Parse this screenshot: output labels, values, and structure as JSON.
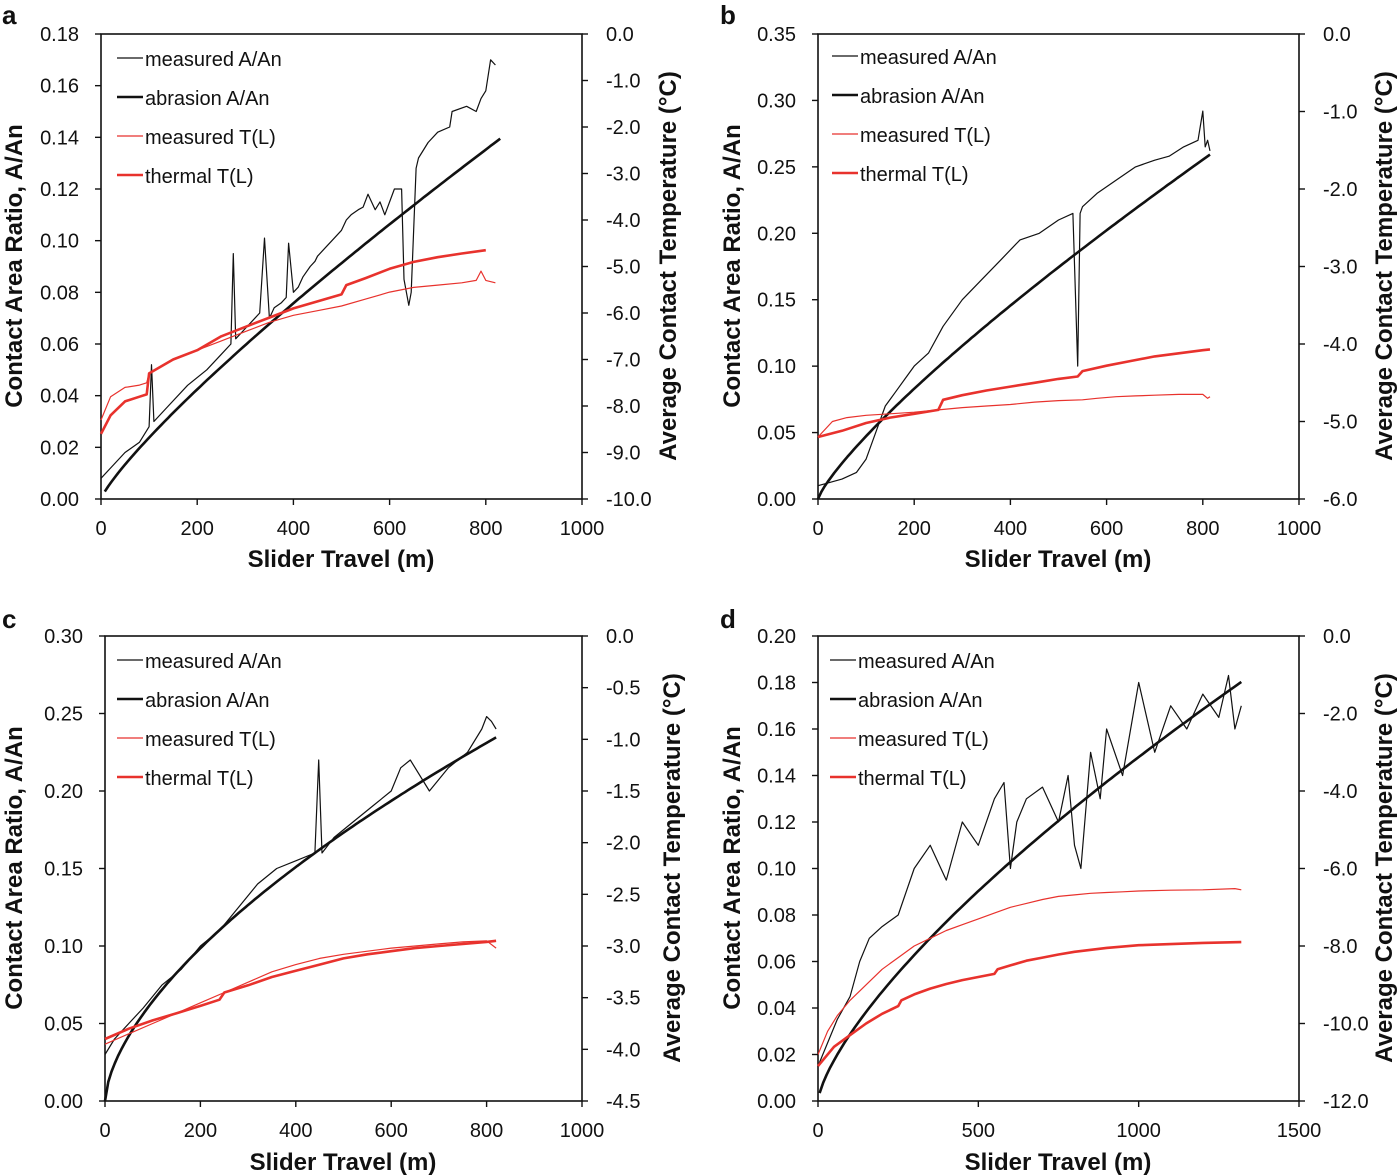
{
  "colors": {
    "black": "#111111",
    "red": "#e8322d"
  },
  "chart_data": [
    {
      "id": "a",
      "type": "line",
      "panel_label": "a",
      "xlabel": "Slider Travel (m)",
      "ylabel": "Contact Area Ratio, A/An",
      "y2label": "Average Contact Temperature (°C)",
      "xlim": [
        0,
        1000
      ],
      "ylim": [
        0,
        0.18
      ],
      "y2lim": [
        -10,
        0
      ],
      "xticks": [
        "0",
        "200",
        "400",
        "600",
        "800",
        "1000"
      ],
      "yticks": [
        "0.00",
        "0.02",
        "0.04",
        "0.06",
        "0.08",
        "0.10",
        "0.12",
        "0.14",
        "0.16",
        "0.18"
      ],
      "y2ticks": [
        "-10.0",
        "-9.0",
        "-8.0",
        "-7.0",
        "-6.0",
        "-5.0",
        "-4.0",
        "-3.0",
        "-2.0",
        "-1.0",
        "0.0"
      ],
      "legend": [
        "measured A/An",
        "abrasion A/An",
        "measured T(L)",
        "thermal T(L)"
      ],
      "series": [
        {
          "name": "measured A/An",
          "axis": "left",
          "color": "black",
          "style": "thin",
          "x": [
            0,
            20,
            50,
            80,
            100,
            105,
            110,
            140,
            180,
            220,
            250,
            270,
            275,
            280,
            300,
            320,
            330,
            340,
            350,
            360,
            375,
            385,
            390,
            400,
            410,
            420,
            435,
            445,
            450,
            470,
            480,
            500,
            510,
            520,
            535,
            545,
            555,
            570,
            580,
            590,
            610,
            625,
            630,
            640,
            645,
            655,
            660,
            680,
            700,
            725,
            730,
            760,
            780,
            790,
            800,
            810,
            820
          ],
          "y": [
            0.008,
            0.012,
            0.018,
            0.022,
            0.028,
            0.052,
            0.03,
            0.036,
            0.044,
            0.05,
            0.056,
            0.06,
            0.095,
            0.062,
            0.066,
            0.07,
            0.072,
            0.101,
            0.07,
            0.074,
            0.076,
            0.078,
            0.099,
            0.08,
            0.082,
            0.086,
            0.09,
            0.092,
            0.094,
            0.098,
            0.1,
            0.104,
            0.108,
            0.11,
            0.112,
            0.113,
            0.118,
            0.112,
            0.115,
            0.11,
            0.12,
            0.12,
            0.085,
            0.075,
            0.08,
            0.128,
            0.132,
            0.138,
            0.142,
            0.144,
            0.15,
            0.152,
            0.15,
            0.155,
            0.158,
            0.17,
            0.168
          ]
        },
        {
          "name": "abrasion A/An",
          "axis": "left",
          "color": "black",
          "style": "thick",
          "fn": "pow",
          "a": 0.000505,
          "p": 0.8363,
          "x0": 8,
          "x1": 830
        },
        {
          "name": "measured T(L)",
          "axis": "right",
          "color": "red",
          "style": "thin",
          "x": [
            0,
            20,
            50,
            80,
            95,
            100,
            150,
            200,
            250,
            300,
            350,
            400,
            450,
            500,
            550,
            600,
            650,
            700,
            750,
            780,
            790,
            800,
            820
          ],
          "y": [
            -8.3,
            -7.8,
            -7.6,
            -7.55,
            -7.5,
            -7.3,
            -7.0,
            -6.8,
            -6.6,
            -6.4,
            -6.2,
            -6.05,
            -5.95,
            -5.85,
            -5.7,
            -5.55,
            -5.45,
            -5.4,
            -5.35,
            -5.3,
            -5.1,
            -5.3,
            -5.35
          ]
        },
        {
          "name": "thermal T(L)",
          "axis": "right",
          "color": "red",
          "style": "thick",
          "x": [
            0,
            20,
            50,
            80,
            95,
            100,
            150,
            200,
            250,
            300,
            350,
            400,
            450,
            500,
            510,
            550,
            600,
            650,
            700,
            750,
            800
          ],
          "y": [
            -8.6,
            -8.2,
            -7.9,
            -7.8,
            -7.75,
            -7.3,
            -7.0,
            -6.8,
            -6.5,
            -6.3,
            -6.1,
            -5.9,
            -5.75,
            -5.6,
            -5.4,
            -5.25,
            -5.05,
            -4.9,
            -4.8,
            -4.72,
            -4.65
          ]
        }
      ]
    },
    {
      "id": "b",
      "type": "line",
      "panel_label": "b",
      "xlabel": "Slider Travel (m)",
      "ylabel": "Contact Area Ratio, A/An",
      "y2label": "Average Contact Temperature (°C)",
      "xlim": [
        0,
        1000
      ],
      "ylim": [
        0,
        0.35
      ],
      "y2lim": [
        -6,
        0
      ],
      "xticks": [
        "0",
        "200",
        "400",
        "600",
        "800",
        "1000"
      ],
      "yticks": [
        "0.00",
        "0.05",
        "0.10",
        "0.15",
        "0.20",
        "0.25",
        "0.30",
        "0.35"
      ],
      "y2ticks": [
        "-6.0",
        "-5.0",
        "-4.0",
        "-3.0",
        "-2.0",
        "-1.0",
        "0.0"
      ],
      "legend": [
        "measured A/An",
        "abrasion A/An",
        "measured T(L)",
        "thermal T(L)"
      ],
      "series": [
        {
          "name": "measured A/An",
          "axis": "left",
          "color": "black",
          "style": "thin",
          "x": [
            0,
            20,
            50,
            80,
            100,
            120,
            140,
            160,
            180,
            200,
            230,
            260,
            300,
            340,
            380,
            420,
            460,
            500,
            530,
            540,
            545,
            550,
            580,
            620,
            660,
            700,
            730,
            760,
            790,
            800,
            805,
            810,
            815
          ],
          "y": [
            0.01,
            0.012,
            0.015,
            0.02,
            0.03,
            0.05,
            0.07,
            0.08,
            0.09,
            0.1,
            0.11,
            0.13,
            0.15,
            0.165,
            0.18,
            0.195,
            0.2,
            0.21,
            0.215,
            0.1,
            0.215,
            0.22,
            0.23,
            0.24,
            0.25,
            0.255,
            0.258,
            0.265,
            0.27,
            0.292,
            0.265,
            0.27,
            0.262
          ]
        },
        {
          "name": "abrasion A/An",
          "axis": "left",
          "color": "black",
          "style": "thick",
          "fn": "pow",
          "a": 0.00113,
          "p": 0.8109,
          "x0": 0,
          "x1": 815
        },
        {
          "name": "measured T(L)",
          "axis": "right",
          "color": "red",
          "style": "thin",
          "x": [
            0,
            30,
            60,
            100,
            150,
            200,
            250,
            300,
            350,
            400,
            450,
            500,
            550,
            580,
            620,
            660,
            700,
            750,
            800,
            810,
            815
          ],
          "y": [
            -5.2,
            -5.0,
            -4.95,
            -4.92,
            -4.9,
            -4.88,
            -4.85,
            -4.82,
            -4.8,
            -4.78,
            -4.75,
            -4.73,
            -4.72,
            -4.7,
            -4.68,
            -4.67,
            -4.66,
            -4.65,
            -4.65,
            -4.7,
            -4.68
          ]
        },
        {
          "name": "thermal T(L)",
          "axis": "right",
          "color": "red",
          "style": "thick",
          "x": [
            0,
            50,
            100,
            150,
            200,
            250,
            260,
            300,
            350,
            400,
            450,
            500,
            540,
            550,
            600,
            650,
            700,
            750,
            800,
            815
          ],
          "y": [
            -5.2,
            -5.12,
            -5.02,
            -4.95,
            -4.9,
            -4.85,
            -4.72,
            -4.66,
            -4.6,
            -4.55,
            -4.5,
            -4.45,
            -4.42,
            -4.35,
            -4.28,
            -4.22,
            -4.16,
            -4.12,
            -4.08,
            -4.07
          ]
        }
      ]
    },
    {
      "id": "c",
      "type": "line",
      "panel_label": "c",
      "xlabel": "Slider Travel (m)",
      "ylabel": "Contact Area Ratio, A/An",
      "y2label": "Average Contact Temperature (°C)",
      "xlim": [
        0,
        1000
      ],
      "ylim": [
        0,
        0.3
      ],
      "y2lim": [
        -4.5,
        0
      ],
      "xticks": [
        "0",
        "200",
        "400",
        "600",
        "800",
        "1000"
      ],
      "yticks": [
        "0.00",
        "0.05",
        "0.10",
        "0.15",
        "0.20",
        "0.25",
        "0.30"
      ],
      "y2ticks": [
        "-4.5",
        "-4.0",
        "-3.5",
        "-3.0",
        "-2.5",
        "-2.0",
        "-1.5",
        "-1.0",
        "-0.5",
        "0.0"
      ],
      "legend": [
        "measured A/An",
        "abrasion A/An",
        "measured T(L)",
        "thermal T(L)"
      ],
      "series": [
        {
          "name": "measured A/An",
          "axis": "left",
          "color": "black",
          "style": "thin",
          "x": [
            0,
            20,
            50,
            80,
            120,
            160,
            200,
            240,
            280,
            320,
            360,
            400,
            440,
            448,
            455,
            480,
            520,
            560,
            600,
            620,
            640,
            680,
            720,
            760,
            790,
            800,
            810,
            820
          ],
          "y": [
            0.03,
            0.04,
            0.05,
            0.06,
            0.075,
            0.085,
            0.1,
            0.11,
            0.125,
            0.14,
            0.15,
            0.155,
            0.16,
            0.22,
            0.16,
            0.17,
            0.18,
            0.19,
            0.2,
            0.215,
            0.22,
            0.2,
            0.215,
            0.225,
            0.24,
            0.248,
            0.245,
            0.24
          ]
        },
        {
          "name": "abrasion A/An",
          "axis": "left",
          "color": "black",
          "style": "thick",
          "fn": "pow",
          "a": 0.0038,
          "p": 0.6145,
          "x0": 0,
          "x1": 820
        },
        {
          "name": "measured T(L)",
          "axis": "right",
          "color": "red",
          "style": "thin",
          "x": [
            0,
            50,
            100,
            150,
            200,
            250,
            300,
            350,
            400,
            450,
            500,
            550,
            600,
            650,
            700,
            750,
            800,
            820
          ],
          "y": [
            -3.95,
            -3.85,
            -3.75,
            -3.65,
            -3.55,
            -3.45,
            -3.35,
            -3.25,
            -3.18,
            -3.12,
            -3.08,
            -3.05,
            -3.02,
            -3.0,
            -2.98,
            -2.96,
            -2.95,
            -3.02
          ]
        },
        {
          "name": "thermal T(L)",
          "axis": "right",
          "color": "red",
          "style": "thick",
          "x": [
            0,
            50,
            100,
            150,
            200,
            240,
            250,
            300,
            350,
            400,
            450,
            500,
            550,
            600,
            650,
            700,
            750,
            800,
            820
          ],
          "y": [
            -3.9,
            -3.8,
            -3.72,
            -3.65,
            -3.58,
            -3.52,
            -3.45,
            -3.38,
            -3.3,
            -3.24,
            -3.18,
            -3.12,
            -3.08,
            -3.05,
            -3.02,
            -3.0,
            -2.98,
            -2.96,
            -2.95
          ]
        }
      ]
    },
    {
      "id": "d",
      "type": "line",
      "panel_label": "d",
      "xlabel": "Slider Travel (m)",
      "ylabel": "Contact Area Ratio, A/An",
      "y2label": "Average Contact Temperature (°C)",
      "xlim": [
        0,
        1500
      ],
      "ylim": [
        0,
        0.2
      ],
      "y2lim": [
        -12,
        0
      ],
      "xticks": [
        "0",
        "500",
        "1000",
        "1500"
      ],
      "yticks": [
        "0.00",
        "0.02",
        "0.04",
        "0.06",
        "0.08",
        "0.10",
        "0.12",
        "0.14",
        "0.16",
        "0.18",
        "0.20"
      ],
      "y2ticks": [
        "-12.0",
        "-10.0",
        "-8.0",
        "-6.0",
        "-4.0",
        "-2.0",
        "0.0"
      ],
      "legend": [
        "measured A/An",
        "abrasion A/An",
        "measured T(L)",
        "thermal T(L)"
      ],
      "series": [
        {
          "name": "measured A/An",
          "axis": "left",
          "color": "black",
          "style": "thin",
          "x": [
            0,
            30,
            60,
            100,
            130,
            160,
            200,
            250,
            300,
            350,
            400,
            450,
            500,
            550,
            580,
            600,
            620,
            650,
            700,
            750,
            780,
            800,
            820,
            850,
            880,
            900,
            950,
            1000,
            1050,
            1100,
            1150,
            1200,
            1250,
            1280,
            1300,
            1320
          ],
          "y": [
            0.015,
            0.025,
            0.035,
            0.045,
            0.06,
            0.07,
            0.075,
            0.08,
            0.1,
            0.11,
            0.095,
            0.12,
            0.11,
            0.13,
            0.137,
            0.1,
            0.12,
            0.13,
            0.135,
            0.12,
            0.14,
            0.11,
            0.1,
            0.15,
            0.13,
            0.16,
            0.14,
            0.18,
            0.15,
            0.17,
            0.16,
            0.175,
            0.165,
            0.183,
            0.16,
            0.17
          ]
        },
        {
          "name": "abrasion A/An",
          "axis": "left",
          "color": "black",
          "style": "thick",
          "fn": "pow",
          "a": 0.00108,
          "p": 0.7122,
          "x0": 5,
          "x1": 1320
        },
        {
          "name": "measured T(L)",
          "axis": "right",
          "color": "red",
          "style": "thin",
          "x": [
            0,
            30,
            60,
            100,
            150,
            200,
            250,
            300,
            350,
            400,
            450,
            500,
            550,
            600,
            650,
            700,
            750,
            800,
            850,
            900,
            950,
            1000,
            1100,
            1200,
            1300,
            1320
          ],
          "y": [
            -10.8,
            -10.2,
            -9.8,
            -9.4,
            -9.0,
            -8.6,
            -8.3,
            -8.0,
            -7.8,
            -7.6,
            -7.45,
            -7.3,
            -7.15,
            -7.0,
            -6.9,
            -6.8,
            -6.72,
            -6.68,
            -6.64,
            -6.62,
            -6.6,
            -6.58,
            -6.56,
            -6.55,
            -6.52,
            -6.55
          ]
        },
        {
          "name": "thermal T(L)",
          "axis": "right",
          "color": "red",
          "style": "thick",
          "x": [
            0,
            50,
            100,
            150,
            200,
            250,
            260,
            300,
            350,
            400,
            450,
            500,
            550,
            560,
            600,
            650,
            700,
            750,
            800,
            900,
            1000,
            1100,
            1200,
            1320
          ],
          "y": [
            -11.1,
            -10.6,
            -10.3,
            -10.0,
            -9.75,
            -9.55,
            -9.4,
            -9.25,
            -9.1,
            -8.98,
            -8.88,
            -8.8,
            -8.72,
            -8.6,
            -8.5,
            -8.38,
            -8.3,
            -8.22,
            -8.15,
            -8.05,
            -7.98,
            -7.95,
            -7.92,
            -7.9
          ]
        }
      ]
    }
  ]
}
